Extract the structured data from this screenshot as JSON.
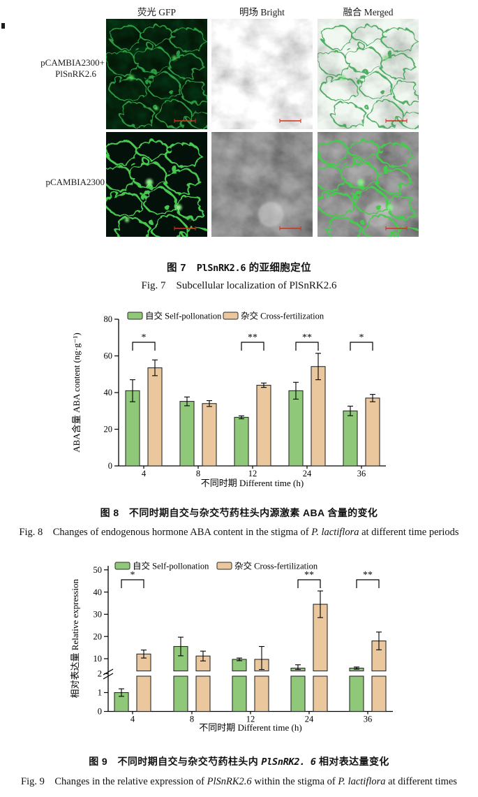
{
  "figure7": {
    "col_headers": [
      "荧光 GFP",
      "明场 Bright",
      "融合 Merged"
    ],
    "row1_label_line1": "pCAMBIA2300+",
    "row1_label_line2": "PlSnRK2.6",
    "row2_label": "pCAMBIA2300",
    "scale_bar_color": "#d2331c",
    "caption_zh_parts": [
      {
        "t": "图 7　"
      },
      {
        "t": "PlSnRK2.6",
        "m": true
      },
      {
        "t": " 的亚细胞定位"
      }
    ],
    "caption_en": "Fig. 7　Subcellular localization of PlSnRK2.6"
  },
  "figure8": {
    "caption_zh": "图 8　不同时期自交与杂交芍药柱头内源激素 ABA 含量的变化",
    "caption_en_parts": [
      {
        "t": "Fig. 8　Changes of endogenous hormone ABA content in the stigma of "
      },
      {
        "t": "P. lactiflora",
        "i": true
      },
      {
        "t": " at different time periods"
      }
    ]
  },
  "figure9": {
    "caption_zh_parts": [
      {
        "t": "图 9　不同时期自交与杂交芍药柱头内 "
      },
      {
        "t": "PlSnRK2. 6",
        "m": true,
        "i": true
      },
      {
        "t": " 相对表达量变化"
      }
    ],
    "caption_en_parts": [
      {
        "t": "Fig. 9　Changes in the relative expression of "
      },
      {
        "t": "PlSnRK2.6",
        "i": true
      },
      {
        "t": " within the stigma of "
      },
      {
        "t": "P. lactiflora",
        "i": true
      },
      {
        "t": " at different times"
      }
    ]
  },
  "chart_data": [
    {
      "id": "fig8",
      "type": "bar",
      "title": "",
      "categories": [
        "4",
        "8",
        "12",
        "24",
        "36"
      ],
      "series": [
        {
          "name": "自交 Self-pollonation",
          "color": "#8FC878",
          "values": [
            41,
            35.2,
            26.5,
            41,
            30
          ],
          "errors": [
            6,
            2.4,
            0.8,
            4.6,
            2.6
          ]
        },
        {
          "name": "杂交 Cross-fertilization",
          "color": "#EAC79D",
          "values": [
            53.5,
            34,
            44,
            54.2,
            37
          ],
          "errors": [
            4.3,
            1.6,
            1.2,
            7.2,
            2
          ]
        }
      ],
      "significance": [
        {
          "group": 0,
          "label": "*"
        },
        {
          "group": 2,
          "label": "**"
        },
        {
          "group": 3,
          "label": "**"
        },
        {
          "group": 4,
          "label": "*"
        }
      ],
      "xlabel": "不同时期 Different time (h)",
      "ylabel": "ABA含量 ABA content (ng·g⁻¹)",
      "ylim": [
        0,
        80
      ],
      "yticks": [
        0,
        20,
        40,
        60,
        80
      ],
      "grid": false,
      "legend_position": "top",
      "bar_border_color": "#2b2b2b"
    },
    {
      "id": "fig9",
      "type": "bar",
      "title": "",
      "categories": [
        "4",
        "8",
        "12",
        "24",
        "36"
      ],
      "series": [
        {
          "name": "自交 Self-pollonation",
          "color": "#8FC878",
          "values": [
            1.0,
            15.5,
            9.7,
            3.0,
            2.8
          ],
          "errors": [
            0.2,
            4.2,
            0.6,
            1.5,
            0.5
          ]
        },
        {
          "name": "杂交 Cross-fertilization",
          "color": "#EAC79D",
          "values": [
            12.1,
            11.2,
            9.7,
            34.5,
            18.0
          ],
          "errors": [
            1.8,
            2.2,
            5.8,
            6.0,
            4.0
          ]
        }
      ],
      "significance": [
        {
          "group": 0,
          "label": "*"
        },
        {
          "group": 3,
          "label": "**"
        },
        {
          "group": 4,
          "label": "**"
        }
      ],
      "xlabel": "不同时期 Different time (h)",
      "ylabel": "相对表达量 Relative expression",
      "axis_break": {
        "lower_ticks": [
          0,
          1,
          2
        ],
        "upper_ticks": [
          10,
          20,
          30,
          40,
          50
        ],
        "break_between": [
          2,
          5
        ]
      },
      "grid": false,
      "legend_position": "top",
      "bar_border_color": "#2b2b2b"
    }
  ]
}
